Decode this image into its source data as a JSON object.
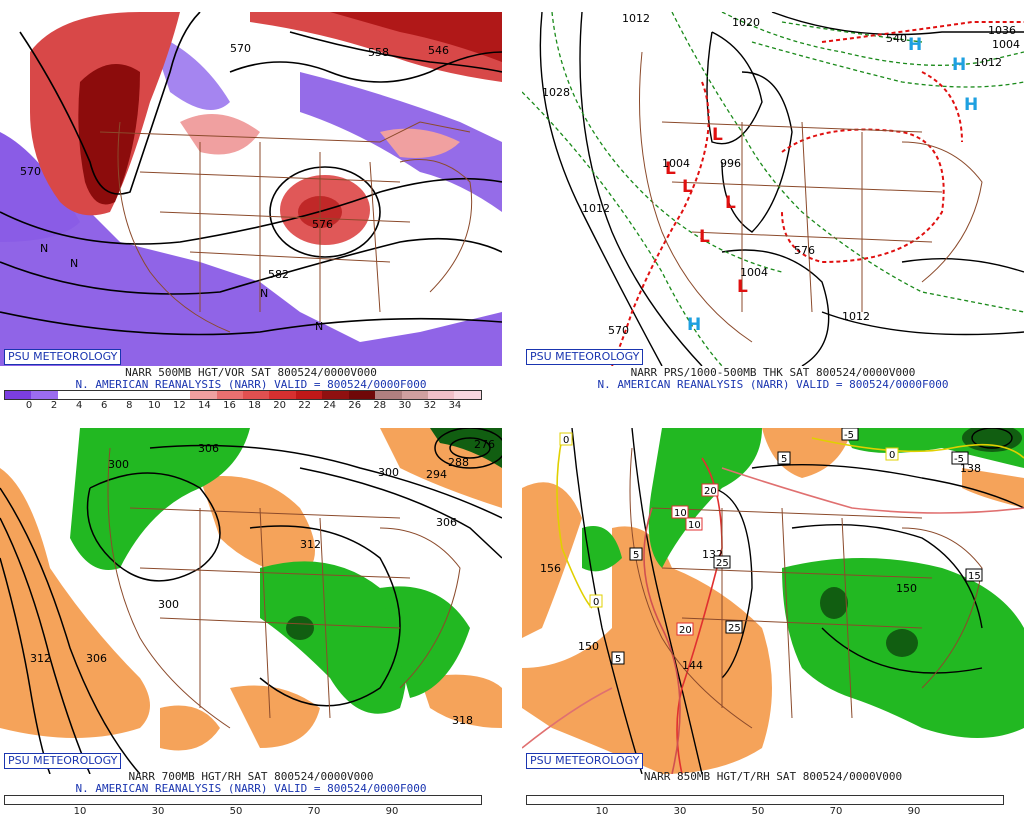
{
  "brand": "PSU METEOROLOGY",
  "panels": [
    {
      "id": "vorticity",
      "title_line1": "NARR 500MB HGT/VOR SAT 800524/0000V000",
      "title_line2": "N. AMERICAN REANALYSIS (NARR) VALID = 800524/0000F000",
      "colorbar_ticks": [
        "0",
        "2",
        "4",
        "6",
        "8",
        "10",
        "12",
        "14",
        "16",
        "18",
        "20",
        "22",
        "24",
        "26",
        "28",
        "30",
        "32",
        "34"
      ],
      "colorbar_colors": [
        "#7b3ee0",
        "#9b6cf0",
        "#ffffff",
        "#ffffff",
        "#ffffff",
        "#ffffff",
        "#ffffff",
        "#f0a0a0",
        "#e87070",
        "#e05050",
        "#d83030",
        "#c01818",
        "#901010",
        "#700808",
        "#b08080",
        "#d0a0a0",
        "#f0c0c8",
        "#f8d8e0"
      ],
      "contour_labels": [
        "570",
        "558",
        "546",
        "570",
        "576",
        "582"
      ],
      "misc_labels": [
        "N",
        "N",
        "N",
        "N"
      ]
    },
    {
      "id": "pressure",
      "title_line1": "NARR PRS/1000-500MB THK SAT 800524/0000V000",
      "title_line2": "N. AMERICAN REANALYSIS (NARR) VALID = 800524/0000F000",
      "contour_labels": [
        "1012",
        "1020",
        "1028",
        "1012",
        "1004",
        "996",
        "1012",
        "1036",
        "1004",
        "1012",
        "540",
        "576",
        "570",
        "1004"
      ],
      "high_low": [
        "H",
        "H",
        "H",
        "H",
        "L",
        "L",
        "L",
        "L",
        "L",
        "L"
      ]
    },
    {
      "id": "rh700",
      "title_line1": "NARR 700MB HGT/RH SAT 800524/0000V000",
      "title_line2": "N. AMERICAN REANALYSIS (NARR) VALID = 800524/0000F000",
      "colorbar_ticks": [
        "10",
        "30",
        "50",
        "70",
        "90"
      ],
      "contour_labels": [
        "300",
        "306",
        "300",
        "312",
        "306",
        "312",
        "300",
        "306",
        "318",
        "276",
        "288",
        "294"
      ]
    },
    {
      "id": "rh850",
      "title_line1": "NARR 850MB HGT/T/RH SAT 800524/0000V000",
      "colorbar_ticks": [
        "10",
        "30",
        "50",
        "70",
        "90"
      ],
      "contour_labels": [
        "156",
        "150",
        "144",
        "150",
        "138",
        "132"
      ],
      "temp_labels": [
        "0",
        "10",
        "10",
        "20",
        "20",
        "25",
        "25",
        "5",
        "5",
        "15",
        "0",
        "-5",
        "-5",
        "5",
        "0"
      ]
    }
  ]
}
